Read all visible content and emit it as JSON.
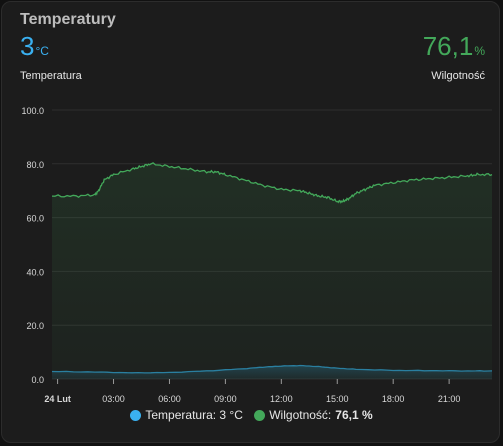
{
  "card": {
    "title": "Temperatury"
  },
  "sensors": {
    "temperature": {
      "value": "3",
      "unit": "°C",
      "name": "Temperatura"
    },
    "humidity": {
      "value": "76,1",
      "unit": "%",
      "name": "Wilgotność"
    }
  },
  "legend": {
    "temperature": {
      "label": "Temperatura: 3 °C",
      "color": "#3ab0f0"
    },
    "humidity": {
      "label": "Wilgotność:",
      "value": "76,1 %",
      "color": "#43a85a"
    }
  },
  "colors": {
    "temperature": "#2a7fa0",
    "humidity": "#43a85a",
    "grid": "#2e2e2e"
  },
  "chart_data": {
    "type": "area",
    "ylim": [
      0,
      100
    ],
    "yticks": [
      "0.0",
      "20.0",
      "40.0",
      "60.0",
      "80.0",
      "100.0"
    ],
    "ytick_values": [
      0,
      20,
      40,
      60,
      80,
      100
    ],
    "xticks": [
      "24 Lut",
      "03:00",
      "06:00",
      "09:00",
      "12:00",
      "15:00",
      "18:00",
      "21:00"
    ],
    "xtick_values": [
      0,
      3,
      6,
      9,
      12,
      15,
      18,
      21
    ],
    "xlim": [
      -0.3,
      23.3
    ],
    "series": [
      {
        "name": "Wilgotność",
        "x": [
          -0.3,
          1.0,
          2.0,
          2.2,
          2.5,
          3.0,
          4.0,
          4.5,
          5.0,
          6.0,
          7.0,
          8.0,
          8.5,
          9.0,
          10.0,
          11.0,
          12.0,
          13.0,
          13.5,
          14.0,
          14.5,
          15.0,
          15.3,
          15.6,
          16.0,
          16.5,
          17.0,
          18.0,
          19.0,
          20.0,
          21.0,
          22.0,
          22.5,
          23.3
        ],
        "values": [
          68,
          68,
          68.5,
          70,
          74,
          76,
          78,
          79,
          80,
          79,
          78,
          77,
          77,
          76,
          74,
          72,
          70.5,
          70,
          69,
          68,
          67.5,
          66,
          66,
          67,
          69,
          70.5,
          72,
          73,
          74,
          74.5,
          75,
          75.5,
          76,
          76
        ]
      },
      {
        "name": "Temperatura",
        "x": [
          -0.3,
          2,
          4,
          6,
          8,
          10,
          11,
          12,
          13,
          14,
          15,
          16,
          18,
          20,
          22,
          23.3
        ],
        "values": [
          2.8,
          2.6,
          2.3,
          2.4,
          3.0,
          3.8,
          4.4,
          4.8,
          5.0,
          4.6,
          4.0,
          3.6,
          3.2,
          3.1,
          3.0,
          3.0
        ]
      }
    ]
  }
}
